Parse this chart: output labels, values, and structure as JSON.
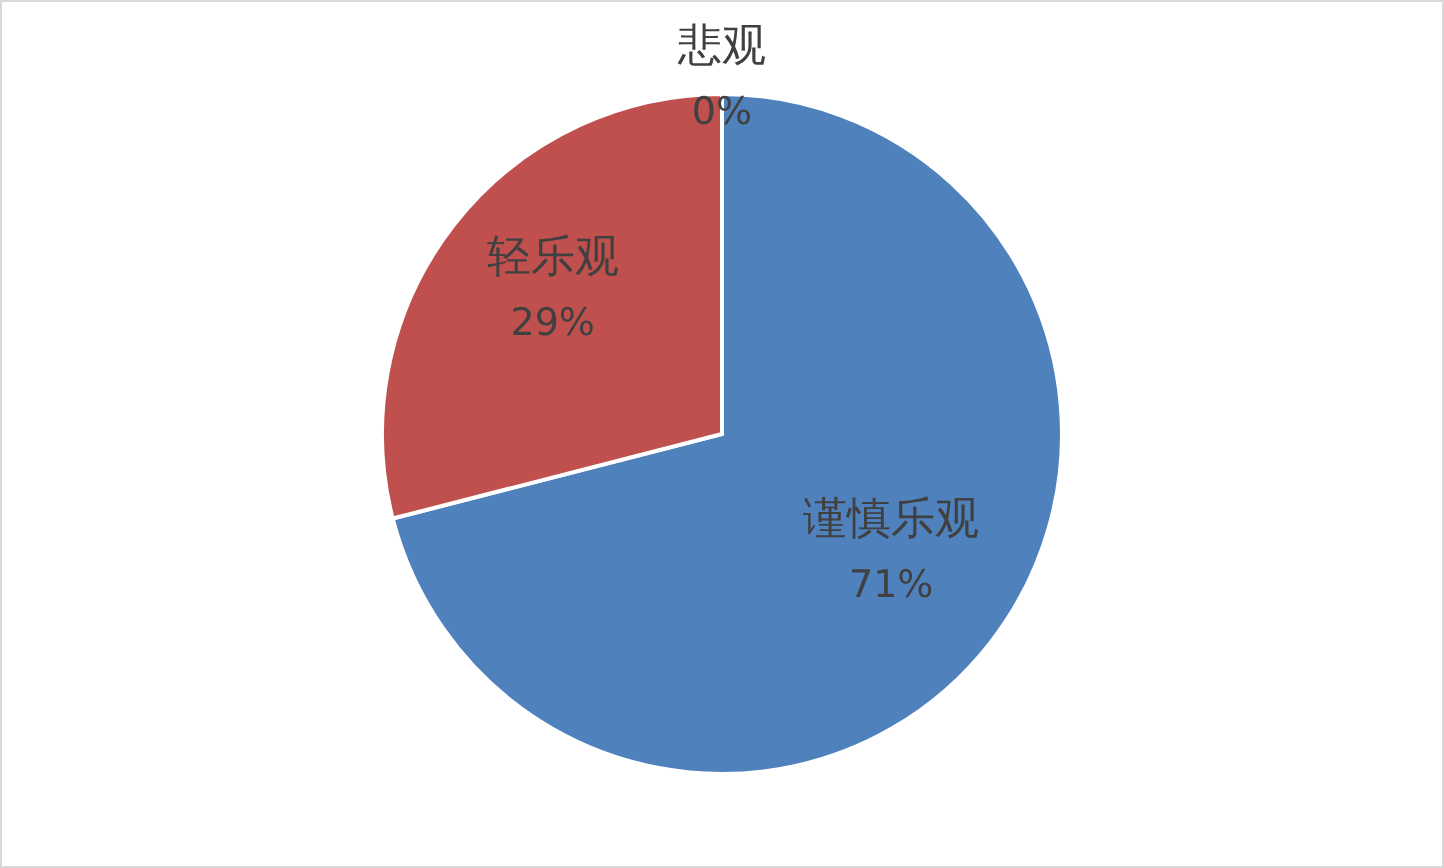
{
  "chart_data": {
    "type": "pie",
    "categories": [
      "谨慎乐观",
      "轻乐观",
      "悲观"
    ],
    "values": [
      71,
      29,
      0
    ],
    "colors": [
      "#4f81bd",
      "#c0504d",
      "#9bbb59"
    ],
    "value_labels": [
      "71%",
      "29%",
      "0%"
    ]
  }
}
